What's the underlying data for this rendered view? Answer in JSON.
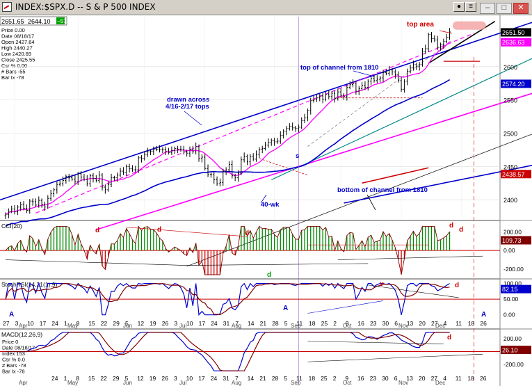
{
  "window": {
    "title": "INDEX:$SPX.D -- S & P 500 INDEX",
    "buttons": [
      "pin",
      "minimize",
      "maximize",
      "close"
    ]
  },
  "chart_data": [
    {
      "type": "candlestick",
      "panel": "price",
      "top_values": {
        "left": "2651.65",
        "right": "2644.10",
        "right_box": "−57"
      },
      "info_box": [
        "Price 0.00",
        "Date 08/18/17",
        "Open 2427.64",
        "High 2440.27",
        "Low 2420.69",
        "Close 2425.55",
        "Csr % 0.00",
        "# Bars -55",
        "Bar Ix -78"
      ],
      "y_ticks": [
        2400,
        2450,
        2500,
        2550,
        2600
      ],
      "ylim": [
        2372,
        2675
      ],
      "right_labels": [
        {
          "text": "2651.50",
          "value": 2651.5,
          "color": "#000000",
          "text_color": "#ffffff"
        },
        {
          "text": "2636.63",
          "value": 2636.63,
          "color": "#ff00ff",
          "text_color": "#ffffff"
        },
        {
          "text": "2574.20",
          "value": 2574.2,
          "color": "#0000cc",
          "text_color": "#ffffff"
        },
        {
          "text": "2438.57",
          "value": 2438.57,
          "color": "#cc0000",
          "text_color": "#ffffff"
        }
      ],
      "close_series_approx": [
        2378,
        2383,
        2386,
        2382,
        2389,
        2393,
        2387,
        2384,
        2398,
        2397,
        2392,
        2399,
        2393,
        2389,
        2402,
        2409,
        2415,
        2423,
        2424,
        2429,
        2435,
        2433,
        2431,
        2427,
        2439,
        2434,
        2431,
        2424,
        2436,
        2432,
        2429,
        2437,
        2419,
        2415,
        2423,
        2433,
        2433,
        2437,
        2443,
        2441,
        2450,
        2447,
        2445,
        2445,
        2463,
        2462,
        2468,
        2472,
        2473,
        2476,
        2476,
        2475,
        2476,
        2473,
        2471,
        2474,
        2477,
        2476,
        2475,
        2472,
        2470,
        2476,
        2472,
        2480,
        2462,
        2464,
        2447,
        2438,
        2438,
        2430,
        2424,
        2426,
        2443,
        2445,
        2453,
        2436,
        2433,
        2440,
        2460,
        2465,
        2457,
        2465,
        2461,
        2468,
        2476,
        2477,
        2482,
        2486,
        2489,
        2487,
        2488,
        2497,
        2503,
        2507,
        2510,
        2508,
        2507,
        2509,
        2519,
        2523,
        2534,
        2549,
        2551,
        2553,
        2556,
        2551,
        2558,
        2555,
        2560,
        2552,
        2562,
        2557,
        2555,
        2569,
        2573,
        2575,
        2563,
        2567,
        2572,
        2569,
        2578,
        2582,
        2579,
        2581,
        2583,
        2591,
        2590,
        2595,
        2592,
        2588,
        2579,
        2566,
        2578,
        2593,
        2598,
        2603,
        2600,
        2603,
        2623,
        2627,
        2648,
        2642,
        2640,
        2629,
        2633,
        2638,
        2644,
        2652
      ],
      "annotations": [
        {
          "text": "top area",
          "color": "#d40000"
        },
        {
          "text": "top of channel from 1810",
          "color": "#0000cc"
        },
        {
          "text": "drawn across",
          "color": "#0000cc"
        },
        {
          "text": "4/16-2/17 tops",
          "color": "#0000cc"
        },
        {
          "text": "bottom of channel from 1810",
          "color": "#0000cc"
        },
        {
          "text": "40-wk",
          "color": "#0000cc"
        },
        {
          "text": "s",
          "color": "#0000cc"
        }
      ]
    },
    {
      "type": "histogram",
      "panel": "cci",
      "label": "CCI(20)",
      "y_ticks": [
        200,
        0,
        -200
      ],
      "ylim": [
        -290,
        300
      ],
      "value_label": {
        "text": "109.73",
        "value": 109.73,
        "color": "#800000"
      },
      "markers": [
        {
          "text": "d",
          "color": "#d40000"
        },
        {
          "text": "d",
          "color": "#d40000"
        },
        {
          "text": "d",
          "color": "#d40000"
        },
        {
          "text": "d",
          "color": "#d40000"
        },
        {
          "text": "d",
          "color": "#d40000"
        },
        {
          "text": "d",
          "color": "#00a000"
        }
      ]
    },
    {
      "type": "line",
      "panel": "stochrsi",
      "label": "StochRSI(14,21(1),9)",
      "y_ticks": [
        100,
        50,
        0
      ],
      "ylim": [
        -5,
        108
      ],
      "value_label": {
        "text": "82.15",
        "value": 82.15,
        "color": "#0000cc"
      },
      "markers": [
        {
          "text": "A",
          "color": "#0000cc"
        },
        {
          "text": "A",
          "color": "#0000cc"
        },
        {
          "text": "v",
          "color": "#d40000"
        },
        {
          "text": "d",
          "color": "#d40000"
        },
        {
          "text": "A",
          "color": "#0000cc"
        }
      ]
    },
    {
      "type": "line",
      "panel": "macd",
      "label": "MACD(12,26,9)",
      "info_box": [
        "Price 0",
        "Date 08/18/17",
        "Index 153",
        "Csr % 0.0",
        "# Bars -78",
        "Bar Ix -78"
      ],
      "y_ticks": [
        200,
        0,
        -200
      ],
      "ylim": [
        -320,
        320
      ],
      "value_label": {
        "text": "26.10",
        "value": 26.1,
        "color": "#800000"
      },
      "markers": [
        {
          "text": "d",
          "color": "#d40000"
        }
      ]
    }
  ],
  "x_axis": {
    "day_labels": [
      "27",
      "3",
      "10",
      "17",
      "24",
      "1",
      "8",
      "15",
      "22",
      "29",
      "5",
      "12",
      "19",
      "26",
      "3",
      "10",
      "17",
      "24",
      "31",
      "7",
      "14",
      "21",
      "28",
      "5",
      "11",
      "18",
      "25",
      "2",
      "9",
      "16",
      "23",
      "30",
      "6",
      "13",
      "20",
      "27",
      "4",
      "11",
      "18",
      "26"
    ],
    "month_labels": [
      "Apr",
      "May",
      "Jun",
      "Jul",
      "Aug",
      "Sep",
      "Oct",
      "Nov",
      "Dec"
    ],
    "macd_day_labels": [
      "24",
      "1",
      "8",
      "15",
      "22",
      "29",
      "5",
      "12",
      "19",
      "26",
      "3",
      "10",
      "17",
      "24",
      "31",
      "7",
      "14",
      "21",
      "28",
      "5",
      "11",
      "18",
      "25",
      "2",
      "9",
      "16",
      "23",
      "30",
      "6",
      "13",
      "20",
      "27",
      "4",
      "11",
      "18",
      "26"
    ]
  }
}
